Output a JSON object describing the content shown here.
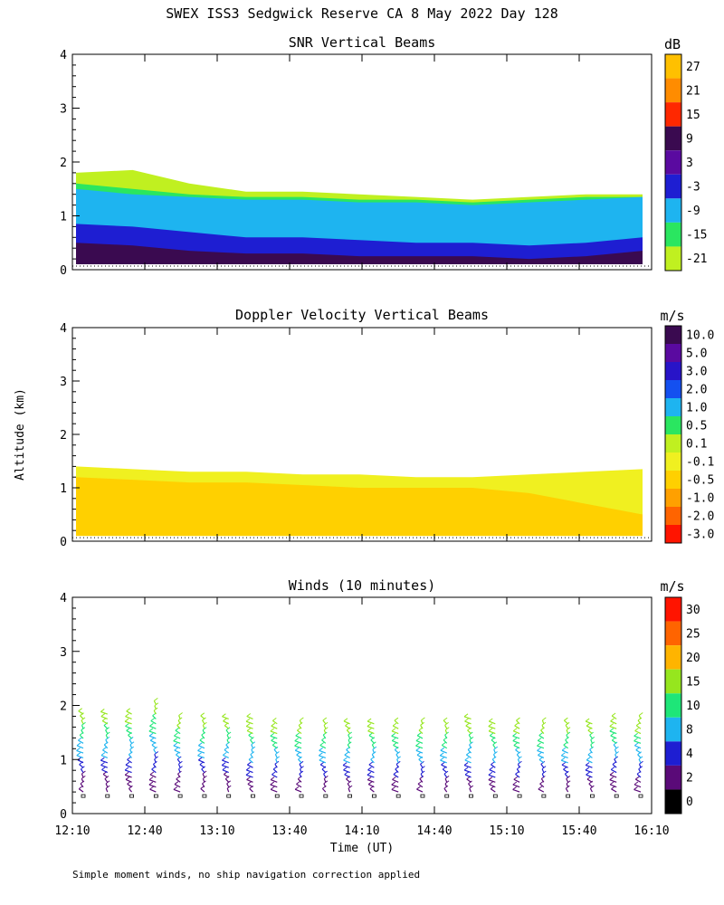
{
  "figure": {
    "title": "SWEX ISS3 Sedgwick Reserve CA   8 May 2022 Day 128",
    "y_axis_label": "Altitude (km)",
    "x_axis_label": "Time (UT)",
    "footnote": "Simple moment winds, no ship navigation correction applied"
  },
  "chart_data": [
    {
      "type": "heatmap",
      "title": "SNR Vertical Beams",
      "ylim": [
        0,
        4
      ],
      "yticks": [
        "0",
        "1",
        "2",
        "3",
        "4"
      ],
      "x_range": [
        "12:10",
        "16:10"
      ],
      "colorbar": {
        "unit": "dB",
        "labels": [
          "27",
          "21",
          "15",
          "9",
          "3",
          "-3",
          "-9",
          "-15",
          "-21"
        ],
        "colors": [
          "#ffc000",
          "#ff8c00",
          "#ff2800",
          "#3a0a50",
          "#5a0aa0",
          "#1e1ed2",
          "#1eb4f0",
          "#2ae660",
          "#c0f020"
        ]
      },
      "layers": [
        {
          "color": "#c0f020",
          "top": [
            1.8,
            1.85,
            1.6,
            1.45,
            1.45,
            1.4,
            1.35,
            1.3,
            1.35,
            1.4,
            1.4
          ]
        },
        {
          "color": "#2ae660",
          "top": [
            1.6,
            1.5,
            1.4,
            1.35,
            1.35,
            1.3,
            1.3,
            1.25,
            1.3,
            1.35,
            1.35
          ]
        },
        {
          "color": "#1eb4f0",
          "top": [
            1.5,
            1.4,
            1.35,
            1.3,
            1.3,
            1.25,
            1.25,
            1.2,
            1.25,
            1.3,
            1.35
          ]
        },
        {
          "color": "#1e1ed2",
          "top": [
            0.85,
            0.8,
            0.7,
            0.6,
            0.6,
            0.55,
            0.5,
            0.5,
            0.45,
            0.5,
            0.6
          ]
        },
        {
          "color": "#3a0a50",
          "top": [
            0.5,
            0.45,
            0.35,
            0.3,
            0.3,
            0.25,
            0.25,
            0.25,
            0.2,
            0.25,
            0.35
          ]
        }
      ],
      "time_fraction": [
        0,
        0.1,
        0.2,
        0.3,
        0.4,
        0.5,
        0.6,
        0.7,
        0.8,
        0.9,
        1.0
      ]
    },
    {
      "type": "heatmap",
      "title": "Doppler Velocity Vertical Beams",
      "ylim": [
        0,
        4
      ],
      "yticks": [
        "0",
        "1",
        "2",
        "3",
        "4"
      ],
      "x_range": [
        "12:10",
        "16:10"
      ],
      "colorbar": {
        "unit": "m/s",
        "labels": [
          "10.0",
          "5.0",
          "3.0",
          "2.0",
          "1.0",
          "0.5",
          "0.1",
          "-0.1",
          "-0.5",
          "-1.0",
          "-2.0",
          "-3.0"
        ],
        "colors": [
          "#3a0a50",
          "#5a0aa0",
          "#2814c8",
          "#1450f0",
          "#1eb4f0",
          "#2ae660",
          "#c0f020",
          "#f0f020",
          "#ffd000",
          "#ffa000",
          "#ff6400",
          "#ff1400"
        ]
      },
      "layers": [
        {
          "color": "#f0f020",
          "top": [
            1.4,
            1.35,
            1.3,
            1.3,
            1.25,
            1.25,
            1.2,
            1.2,
            1.25,
            1.3,
            1.35
          ]
        },
        {
          "color": "#ffd000",
          "top": [
            1.2,
            1.15,
            1.1,
            1.1,
            1.05,
            1.0,
            1.0,
            1.0,
            0.9,
            0.7,
            0.5
          ]
        }
      ],
      "time_fraction": [
        0,
        0.1,
        0.2,
        0.3,
        0.4,
        0.5,
        0.6,
        0.7,
        0.8,
        0.9,
        1.0
      ]
    },
    {
      "type": "scatter",
      "title": "Winds (10 minutes)",
      "ylim": [
        0,
        4
      ],
      "yticks": [
        "0",
        "1",
        "2",
        "3",
        "4"
      ],
      "xticks": [
        "12:10",
        "12:40",
        "13:10",
        "13:40",
        "14:10",
        "14:40",
        "15:10",
        "15:40",
        "16:10"
      ],
      "colorbar": {
        "unit": "m/s",
        "labels": [
          "30",
          "25",
          "20",
          "15",
          "10",
          "8",
          "4",
          "2",
          "0"
        ],
        "colors": [
          "#ff1400",
          "#ff6400",
          "#ffb400",
          "#96e61e",
          "#1ee678",
          "#1eb4f0",
          "#1e1ed2",
          "#5a0a78",
          "#000000"
        ]
      },
      "profile_top_km": [
        1.9,
        1.9,
        1.9,
        2.1,
        1.8,
        1.8,
        1.8,
        1.75,
        1.7,
        1.7,
        1.7,
        1.7,
        1.7,
        1.7,
        1.7,
        1.7,
        1.75,
        1.7,
        1.7,
        1.7,
        1.7,
        1.7,
        1.8,
        1.75
      ]
    }
  ]
}
